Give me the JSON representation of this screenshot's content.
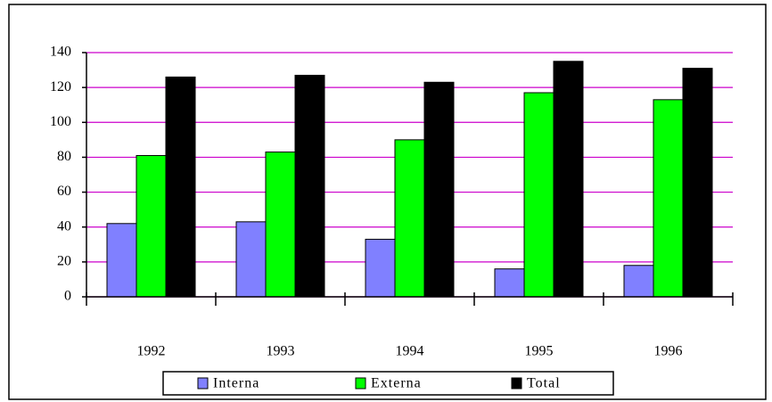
{
  "chart_data": {
    "type": "bar",
    "categories": [
      "1992",
      "1993",
      "1994",
      "1995",
      "1996"
    ],
    "series": [
      {
        "name": "Interna",
        "color": "#8080ff",
        "values": [
          42,
          43,
          33,
          16,
          18
        ]
      },
      {
        "name": "Externa",
        "color": "#00ff00",
        "values": [
          81,
          83,
          90,
          117,
          113
        ]
      },
      {
        "name": "Total",
        "color": "#000000",
        "values": [
          126,
          127,
          123,
          135,
          131
        ]
      }
    ],
    "ylim": [
      0,
      140
    ],
    "yticks": [
      0,
      20,
      40,
      60,
      80,
      100,
      120,
      140
    ],
    "grid": true,
    "grid_color": "#cc00cc",
    "legend": "bottom"
  }
}
